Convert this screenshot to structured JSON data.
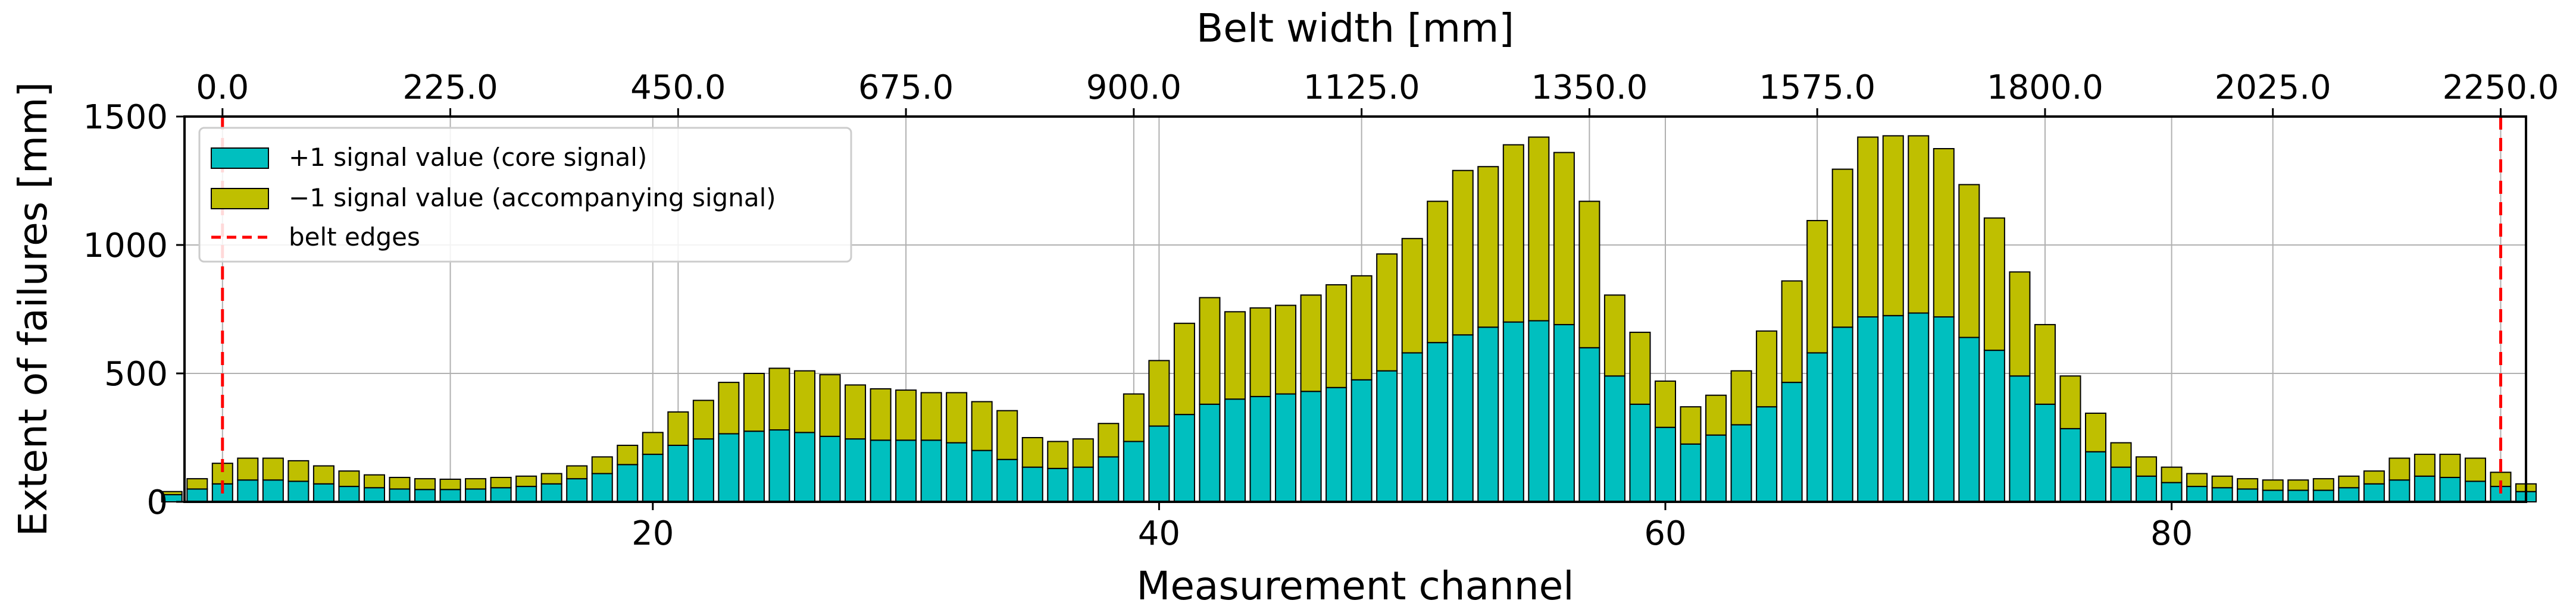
{
  "chart_data": {
    "type": "bar",
    "stacked": true,
    "title": "",
    "xlabel": "Measurement channel",
    "ylabel": "Extent of failures [mm]",
    "secondary_xlabel": "Belt width [mm]",
    "xlim": [
      1.5,
      94
    ],
    "ylim": [
      0,
      1500
    ],
    "x_ticks": [
      20,
      40,
      60,
      80
    ],
    "y_ticks": [
      0,
      500,
      1000,
      1500
    ],
    "secondary_x_ticks": [
      "0.0",
      "225.0",
      "450.0",
      "675.0",
      "900.0",
      "1125.0",
      "1350.0",
      "1575.0",
      "1800.0",
      "2025.0",
      "2250.0"
    ],
    "secondary_x_range": [
      0,
      2250
    ],
    "grid": true,
    "legend_position": "top-left",
    "belt_edges": [
      3,
      93
    ],
    "colors": {
      "core": "#00bfbf",
      "accompanying": "#bfbf00",
      "edges": "#ff0000"
    },
    "x": [
      1,
      2,
      3,
      4,
      5,
      6,
      7,
      8,
      9,
      10,
      11,
      12,
      13,
      14,
      15,
      16,
      17,
      18,
      19,
      20,
      21,
      22,
      23,
      24,
      25,
      26,
      27,
      28,
      29,
      30,
      31,
      32,
      33,
      34,
      35,
      36,
      37,
      38,
      39,
      40,
      41,
      42,
      43,
      44,
      45,
      46,
      47,
      48,
      49,
      50,
      51,
      52,
      53,
      54,
      55,
      56,
      57,
      58,
      59,
      60,
      61,
      62,
      63,
      64,
      65,
      66,
      67,
      68,
      69,
      70,
      71,
      72,
      73,
      74,
      75,
      76,
      77,
      78,
      79,
      80,
      81,
      82,
      83,
      84,
      85,
      86,
      87,
      88,
      89,
      90,
      91,
      92,
      93,
      94
    ],
    "series": [
      {
        "name": "+1 signal value (core signal)",
        "values": [
          28,
          50,
          70,
          85,
          85,
          80,
          70,
          60,
          55,
          50,
          48,
          48,
          50,
          55,
          60,
          70,
          90,
          110,
          145,
          185,
          220,
          245,
          265,
          275,
          280,
          270,
          255,
          245,
          240,
          240,
          240,
          230,
          200,
          165,
          135,
          130,
          135,
          175,
          235,
          295,
          340,
          380,
          400,
          410,
          420,
          430,
          445,
          475,
          510,
          580,
          620,
          650,
          680,
          700,
          705,
          690,
          600,
          490,
          380,
          290,
          225,
          260,
          300,
          370,
          465,
          580,
          680,
          720,
          725,
          735,
          720,
          640,
          590,
          490,
          380,
          285,
          195,
          135,
          100,
          75,
          60,
          55,
          50,
          45,
          45,
          45,
          55,
          70,
          85,
          100,
          95,
          80,
          60,
          40
        ]
      },
      {
        "name": "−1 signal value (accompanying signal)",
        "values": [
          12,
          40,
          80,
          85,
          85,
          80,
          70,
          60,
          50,
          45,
          42,
          40,
          40,
          40,
          40,
          40,
          50,
          65,
          75,
          85,
          130,
          150,
          200,
          225,
          240,
          240,
          240,
          210,
          200,
          195,
          185,
          195,
          190,
          190,
          115,
          105,
          110,
          130,
          185,
          255,
          355,
          415,
          340,
          345,
          345,
          375,
          400,
          405,
          455,
          445,
          550,
          640,
          625,
          690,
          715,
          670,
          570,
          315,
          280,
          180,
          145,
          155,
          210,
          295,
          395,
          515,
          615,
          700,
          700,
          690,
          655,
          595,
          515,
          405,
          310,
          205,
          150,
          95,
          75,
          60,
          50,
          45,
          40,
          40,
          40,
          45,
          45,
          50,
          85,
          85,
          90,
          90,
          55,
          30
        ]
      }
    ],
    "legend": [
      "+1 signal value (core signal)",
      "−1 signal value (accompanying signal)",
      "belt edges"
    ]
  }
}
